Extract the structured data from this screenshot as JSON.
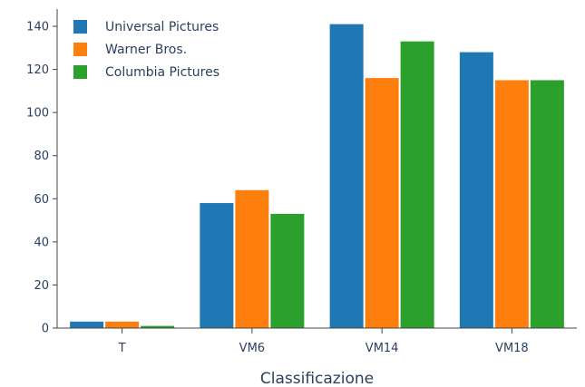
{
  "chart_data": {
    "type": "bar",
    "xlabel": "Classificazione",
    "ylabel": "",
    "categories": [
      "T",
      "VM6",
      "VM14",
      "VM18"
    ],
    "series": [
      {
        "name": "Universal Pictures",
        "color": "#1f77b4",
        "values": [
          3,
          58,
          141,
          128
        ]
      },
      {
        "name": "Warner Bros.",
        "color": "#ff7f0e",
        "values": [
          3,
          64,
          116,
          115
        ]
      },
      {
        "name": "Columbia Pictures",
        "color": "#2ca02c",
        "values": [
          1,
          53,
          133,
          115
        ]
      }
    ],
    "ylim": [
      0,
      148
    ],
    "yticks": [
      0,
      20,
      40,
      60,
      80,
      100,
      120,
      140
    ],
    "grid": false,
    "legend_position": "top-left"
  }
}
